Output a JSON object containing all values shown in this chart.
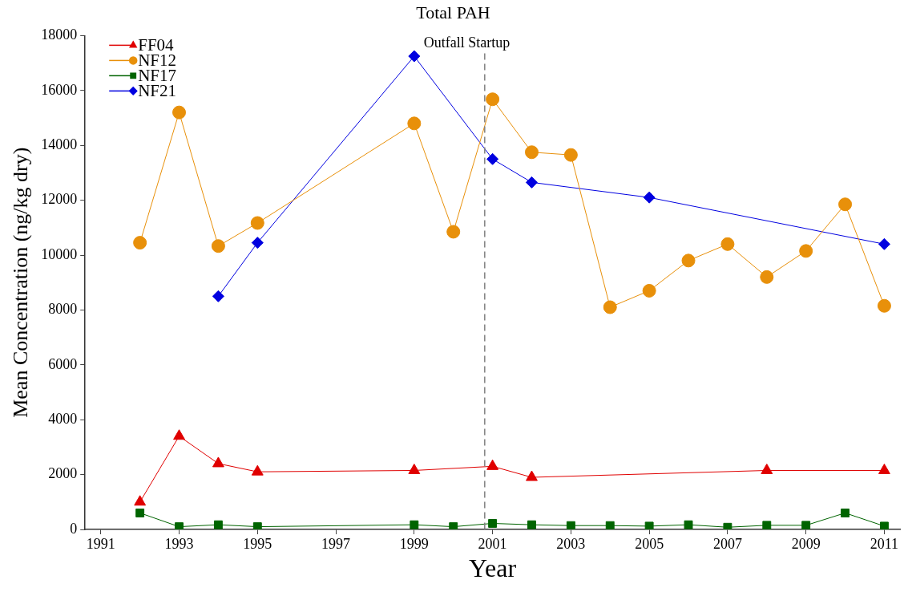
{
  "chart_data": {
    "type": "line",
    "title": "Total PAH",
    "xlabel": "Year",
    "ylabel": "Mean Concentration (ng/kg dry)",
    "xlim": [
      1990.6,
      2011.4
    ],
    "xticks": [
      1991,
      1993,
      1995,
      1997,
      1999,
      2001,
      2003,
      2005,
      2007,
      2009,
      2011
    ],
    "ylim": [
      0,
      18000
    ],
    "yticks": [
      0,
      2000,
      4000,
      6000,
      8000,
      10000,
      12000,
      14000,
      16000,
      18000
    ],
    "grid": false,
    "legend": "top left",
    "line_style": "solid",
    "ref_lines": [
      {
        "axis": "x",
        "value": 2000.8,
        "label": "Outfall Startup",
        "color": "#808080",
        "line_style": "dashed"
      }
    ],
    "series": [
      {
        "name": "FF04",
        "color": "#e00000",
        "marker": "triangle",
        "x": [
          1992,
          1993,
          1994,
          1995,
          1999,
          2001,
          2002,
          2008,
          2011
        ],
        "values": [
          1000,
          3400,
          2400,
          2100,
          2150,
          2300,
          1900,
          2150,
          2150
        ]
      },
      {
        "name": "NF12",
        "color": "#e8900a",
        "marker": "circle",
        "x": [
          1992,
          1993,
          1994,
          1995,
          1999,
          2000,
          2001,
          2002,
          2003,
          2004,
          2005,
          2006,
          2007,
          2008,
          2009,
          2010,
          2011
        ],
        "values": [
          10450,
          15200,
          10330,
          11170,
          14800,
          10850,
          15680,
          13750,
          13650,
          8100,
          8700,
          9800,
          10400,
          9200,
          10150,
          11850,
          8150
        ]
      },
      {
        "name": "NF17",
        "color": "#006400",
        "marker": "square",
        "x": [
          1992,
          1993,
          1994,
          1995,
          1999,
          2000,
          2001,
          2002,
          2003,
          2004,
          2005,
          2006,
          2007,
          2008,
          2009,
          2010,
          2011
        ],
        "values": [
          600,
          100,
          170,
          100,
          170,
          100,
          220,
          170,
          140,
          140,
          120,
          170,
          80,
          150,
          150,
          600,
          120
        ]
      },
      {
        "name": "NF21",
        "color": "#0000e0",
        "marker": "diamond",
        "x": [
          1994,
          1995,
          1999,
          2001,
          2002,
          2005,
          2011
        ],
        "values": [
          8500,
          10450,
          17250,
          13500,
          12650,
          12100,
          10400
        ]
      }
    ]
  }
}
